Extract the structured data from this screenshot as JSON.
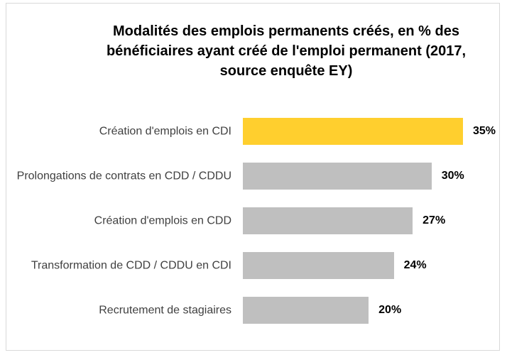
{
  "chart_data": {
    "type": "bar",
    "orientation": "horizontal",
    "title": "Modalités des emplois permanents créés, en % des bénéficiaires ayant créé de l'emploi permanent (2017, source enquête EY)",
    "categories": [
      "Création d'emplois en CDI",
      "Prolongations de contrats en CDD / CDDU",
      "Création d'emplois en CDD",
      "Transformation de CDD / CDDU en CDI",
      "Recrutement de stagiaires"
    ],
    "values": [
      35,
      30,
      27,
      24,
      20
    ],
    "value_labels": [
      "35%",
      "30%",
      "27%",
      "24%",
      "20%"
    ],
    "colors": [
      "#ffcf2e",
      "#bfbfbf",
      "#bfbfbf",
      "#bfbfbf",
      "#bfbfbf"
    ]
  }
}
